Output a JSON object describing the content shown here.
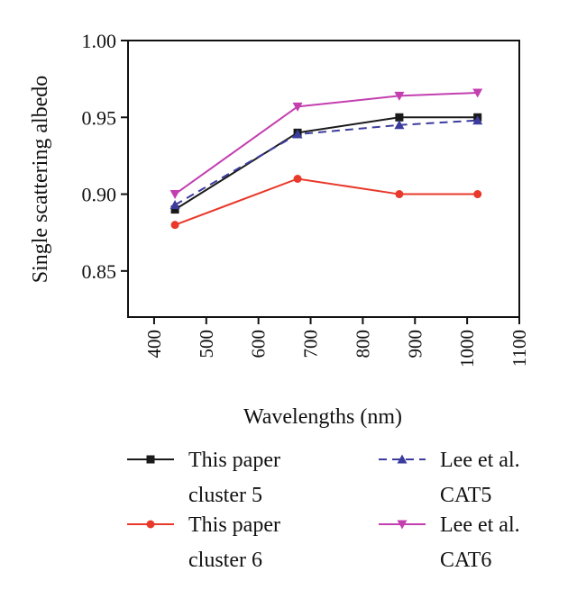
{
  "chart_data": {
    "type": "line",
    "xlabel": "Wavelengths (nm)",
    "ylabel": "Single scattering albedo",
    "xlim": [
      350,
      1100
    ],
    "ylim": [
      0.82,
      1.0
    ],
    "xticks": [
      400,
      500,
      600,
      700,
      800,
      900,
      1000,
      1100
    ],
    "yticks": [
      0.85,
      0.9,
      0.95,
      1.0
    ],
    "xtick_labels": [
      "400",
      "500",
      "600",
      "700",
      "800",
      "900",
      "1000",
      "1100"
    ],
    "ytick_labels": [
      "0.85",
      "0.90",
      "0.95",
      "1.00"
    ],
    "x": [
      440,
      675,
      870,
      1020
    ],
    "series": [
      {
        "name": "This paper cluster 5",
        "legend_lines": [
          "This paper",
          "cluster 5"
        ],
        "values": [
          0.89,
          0.94,
          0.95,
          0.95
        ],
        "color": "#1a1a1a",
        "marker": "square",
        "dashed": false
      },
      {
        "name": "This paper cluster 6",
        "legend_lines": [
          "This paper",
          "cluster 6"
        ],
        "values": [
          0.88,
          0.91,
          0.9,
          0.9
        ],
        "color": "#e8392a",
        "marker": "circle",
        "dashed": false
      },
      {
        "name": "Lee et al. CAT5",
        "legend_lines": [
          "Lee et al.",
          "CAT5"
        ],
        "values": [
          0.893,
          0.939,
          0.945,
          0.948
        ],
        "color": "#3c3c9e",
        "marker": "triangle-up",
        "dashed": true
      },
      {
        "name": "Lee et al. CAT6",
        "legend_lines": [
          "Lee et al.",
          "CAT6"
        ],
        "values": [
          0.9,
          0.957,
          0.964,
          0.966
        ],
        "color": "#c33fb0",
        "marker": "triangle-down",
        "dashed": false
      }
    ],
    "legend_position": "bottom",
    "grid": false
  }
}
